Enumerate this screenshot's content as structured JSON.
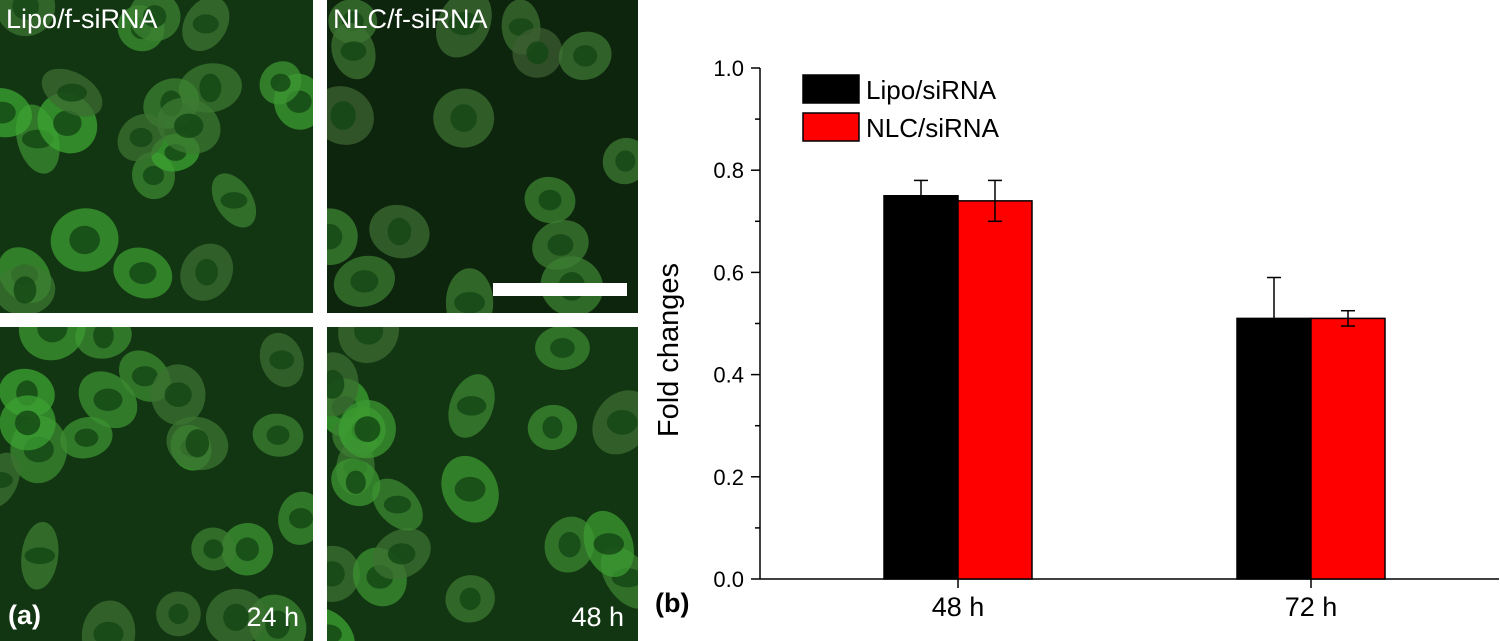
{
  "panel_a": {
    "letter": "(a)",
    "tiles": [
      {
        "top_label": "Lipo/f-siRNA",
        "bottom_label": ""
      },
      {
        "top_label": "NLC/f-siRNA",
        "bottom_label": ""
      },
      {
        "top_label": "",
        "bottom_label": "24 h"
      },
      {
        "top_label": "",
        "bottom_label": "48 h"
      }
    ]
  },
  "panel_b": {
    "letter": "(b)"
  },
  "chart_data": {
    "type": "bar",
    "title": "",
    "xlabel": "",
    "ylabel": "Fold changes",
    "categories": [
      "48 h",
      "72 h"
    ],
    "ylim": [
      0.0,
      1.0
    ],
    "yticks": [
      "0.0",
      "0.2",
      "0.4",
      "0.6",
      "0.8",
      "1.0"
    ],
    "series": [
      {
        "name": "Lipo/siRNA",
        "color": "#000000",
        "values": [
          0.75,
          0.51
        ],
        "errors": [
          0.03,
          0.08
        ]
      },
      {
        "name": "NLC/siRNA",
        "color": "#ff0000",
        "values": [
          0.74,
          0.51
        ],
        "errors": [
          0.04,
          0.015
        ]
      }
    ],
    "legend_position": "top-left",
    "grid": false
  }
}
